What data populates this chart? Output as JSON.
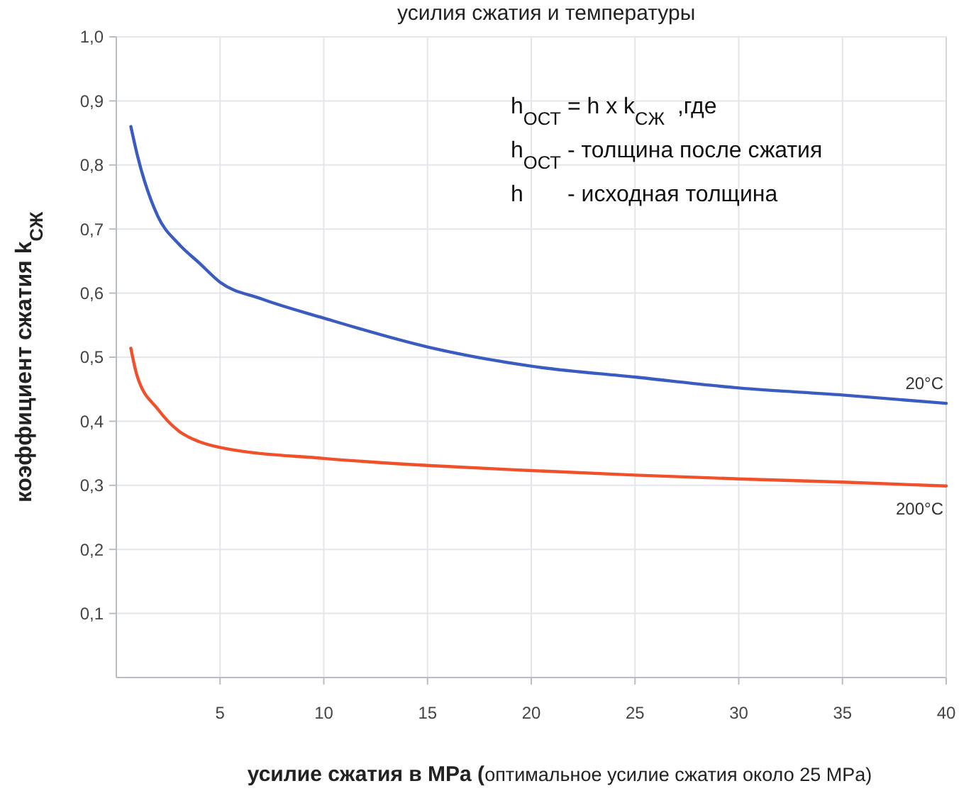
{
  "chart_data": {
    "type": "line",
    "title": "усилия сжатия и температуры",
    "xlabel": "усилие сжатия в MPa (оптимальное усилие сжатия около 25 MPa)",
    "ylabel": "коэффициент сжатия k$_{СЖ}$",
    "xlim": [
      0,
      40
    ],
    "xticks": [
      5,
      10,
      15,
      20,
      25,
      30,
      35,
      40
    ],
    "ylim": [
      0,
      1
    ],
    "yticks": [
      {
        "value": 0.1,
        "label": "0,1"
      },
      {
        "value": 0.2,
        "label": "0,2"
      },
      {
        "value": 0.3,
        "label": "0,3"
      },
      {
        "value": 0.4,
        "label": "0,4"
      },
      {
        "value": 0.5,
        "label": "0,5"
      },
      {
        "value": 0.6,
        "label": "0,6"
      },
      {
        "value": 0.7,
        "label": "0,7"
      },
      {
        "value": 0.8,
        "label": "0,8"
      },
      {
        "value": 0.9,
        "label": "0,9"
      },
      {
        "value": 1,
        "label": "1,0"
      }
    ],
    "grid": true,
    "marker": "none",
    "line_style": "solid",
    "annotations": [
      "h$_{ОСТ}$ = h x k$_{СЖ}$  ,где",
      "h$_{ОСТ}$ - толщина после сжатия",
      "h       - исходная толщина"
    ],
    "series": [
      {
        "name": "20°C",
        "color": "#3a5bbf",
        "x": [
          0.7,
          1,
          2,
          3,
          4,
          5,
          7,
          10,
          15,
          20,
          25,
          30,
          35,
          40
        ],
        "values": [
          0.86,
          0.817,
          0.72,
          0.677,
          0.647,
          0.617,
          0.591,
          0.561,
          0.516,
          0.486,
          0.469,
          0.452,
          0.441,
          0.428
        ]
      },
      {
        "name": "200°C",
        "color": "#f0502a",
        "x": [
          0.7,
          1,
          2,
          3,
          4,
          5,
          10,
          15,
          20,
          25,
          30,
          35,
          40
        ],
        "values": [
          0.514,
          0.471,
          0.419,
          0.385,
          0.368,
          0.359,
          0.342,
          0.331,
          0.323,
          0.316,
          0.31,
          0.305,
          0.299
        ]
      }
    ]
  }
}
